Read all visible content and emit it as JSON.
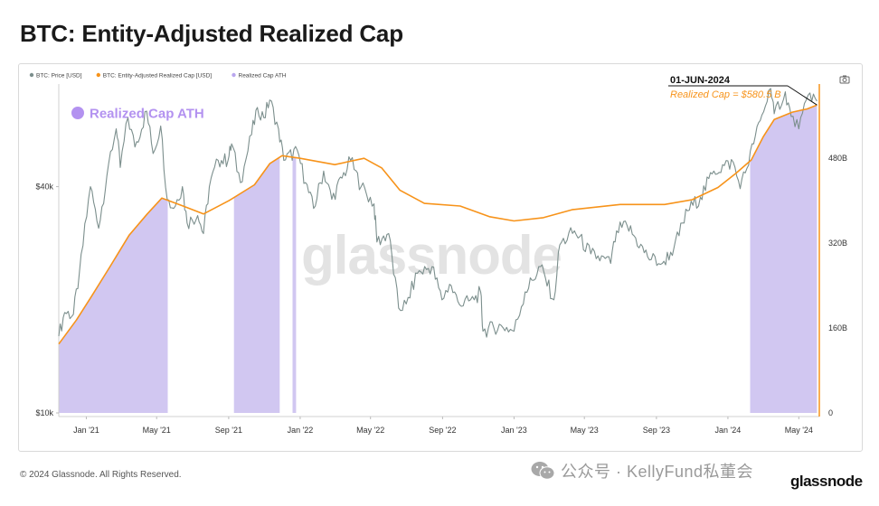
{
  "title": "BTC: Entity-Adjusted Realized Cap",
  "watermark": "glassnode",
  "copyright": "© 2024 Glassnode. All Rights Reserved.",
  "brand": "glassnode",
  "wechat_text": "公众号 · KellyFund私董会",
  "icons": {
    "camera": "camera-icon",
    "wechat": "wechat-icon"
  },
  "colors": {
    "price": "#7c8f8d",
    "realized_cap": "#f7931a",
    "ath_fill": "#cfc4f0",
    "ath_legend": "#b9a6ee",
    "ath_label": "#b392f0",
    "annotation": "#111111"
  },
  "chart_data": {
    "type": "line",
    "title": "BTC: Entity-Adjusted Realized Cap",
    "legend": {
      "placement": "top-left",
      "items": [
        {
          "name": "BTC: Price [USD]",
          "color": "#7c8f8d"
        },
        {
          "name": "BTC: Entity-Adjusted Realized Cap [USD]",
          "color": "#f7931a"
        },
        {
          "name": "Realized Cap ATH",
          "color": "#b9a6ee"
        }
      ]
    },
    "x_ticks": [
      "Jan '21",
      "May '21",
      "Sep '21",
      "Jan '22",
      "May '22",
      "Sep '22",
      "Jan '23",
      "May '23",
      "Sep '23",
      "Jan '24",
      "May '24"
    ],
    "x_range": [
      "2020-11-15",
      "2024-06-05"
    ],
    "y_left": {
      "scale": "log",
      "ticks": [
        "$10k",
        "$40k"
      ],
      "range": [
        10000,
        75000
      ]
    },
    "y_right": {
      "scale": "linear",
      "ticks": [
        "0",
        "160B",
        "320B",
        "480B"
      ],
      "range": [
        0,
        620
      ]
    },
    "ath_label": "Realized Cap ATH",
    "annotation": {
      "date": "01-JUN-2024",
      "text": "Realized Cap = $580.5 B",
      "value_billion": 580.5
    },
    "grid": false,
    "series": [
      {
        "name": "BTC: Price [USD]",
        "axis": "left",
        "points": [
          [
            "2020-11-15",
            16000
          ],
          [
            "2020-11-25",
            18500
          ],
          [
            "2020-12-10",
            18300
          ],
          [
            "2020-12-20",
            23500
          ],
          [
            "2021-01-08",
            40000
          ],
          [
            "2021-01-22",
            31000
          ],
          [
            "2021-02-08",
            46000
          ],
          [
            "2021-02-21",
            57000
          ],
          [
            "2021-02-28",
            45000
          ],
          [
            "2021-03-13",
            61000
          ],
          [
            "2021-03-25",
            51000
          ],
          [
            "2021-04-14",
            63500
          ],
          [
            "2021-04-25",
            49000
          ],
          [
            "2021-05-08",
            58000
          ],
          [
            "2021-05-19",
            37000
          ],
          [
            "2021-05-30",
            35000
          ],
          [
            "2021-06-14",
            40000
          ],
          [
            "2021-06-22",
            32000
          ],
          [
            "2021-07-10",
            33500
          ],
          [
            "2021-07-20",
            30000
          ],
          [
            "2021-07-30",
            40000
          ],
          [
            "2021-08-14",
            47000
          ],
          [
            "2021-08-31",
            47000
          ],
          [
            "2021-09-06",
            52000
          ],
          [
            "2021-09-21",
            41000
          ],
          [
            "2021-10-10",
            55000
          ],
          [
            "2021-10-20",
            65000
          ],
          [
            "2021-10-31",
            61000
          ],
          [
            "2021-11-10",
            68000
          ],
          [
            "2021-11-25",
            57000
          ],
          [
            "2021-12-04",
            47000
          ],
          [
            "2021-12-27",
            50000
          ],
          [
            "2022-01-10",
            41000
          ],
          [
            "2022-01-24",
            35000
          ],
          [
            "2022-02-10",
            44000
          ],
          [
            "2022-02-24",
            37000
          ],
          [
            "2022-03-28",
            47000
          ],
          [
            "2022-04-15",
            40000
          ],
          [
            "2022-05-07",
            36000
          ],
          [
            "2022-05-12",
            28500
          ],
          [
            "2022-06-01",
            30000
          ],
          [
            "2022-06-18",
            19000
          ],
          [
            "2022-07-01",
            19500
          ],
          [
            "2022-07-20",
            23500
          ],
          [
            "2022-08-14",
            24500
          ],
          [
            "2022-08-31",
            20000
          ],
          [
            "2022-09-13",
            22000
          ],
          [
            "2022-09-30",
            19400
          ],
          [
            "2022-10-25",
            20000
          ],
          [
            "2022-11-05",
            21000
          ],
          [
            "2022-11-09",
            16500
          ],
          [
            "2022-12-10",
            17100
          ],
          [
            "2023-01-01",
            16500
          ],
          [
            "2023-01-20",
            21000
          ],
          [
            "2023-02-15",
            24500
          ],
          [
            "2023-03-10",
            20000
          ],
          [
            "2023-03-20",
            28000
          ],
          [
            "2023-04-14",
            30500
          ],
          [
            "2023-05-12",
            26500
          ],
          [
            "2023-06-15",
            25000
          ],
          [
            "2023-06-25",
            30500
          ],
          [
            "2023-07-13",
            31500
          ],
          [
            "2023-08-17",
            26000
          ],
          [
            "2023-09-11",
            25000
          ],
          [
            "2023-10-01",
            27500
          ],
          [
            "2023-10-24",
            34500
          ],
          [
            "2023-11-15",
            37500
          ],
          [
            "2023-12-08",
            44000
          ],
          [
            "2024-01-10",
            46500
          ],
          [
            "2024-01-22",
            39500
          ],
          [
            "2024-02-14",
            52000
          ],
          [
            "2024-02-28",
            62000
          ],
          [
            "2024-03-14",
            73000
          ],
          [
            "2024-03-20",
            62500
          ],
          [
            "2024-04-08",
            71500
          ],
          [
            "2024-04-18",
            61500
          ],
          [
            "2024-05-01",
            57000
          ],
          [
            "2024-05-20",
            71000
          ],
          [
            "2024-06-01",
            67500
          ]
        ]
      },
      {
        "name": "BTC: Entity-Adjusted Realized Cap [USD]",
        "axis": "right",
        "unit": "B USD",
        "points": [
          [
            "2020-11-15",
            130
          ],
          [
            "2020-12-15",
            175
          ],
          [
            "2021-01-10",
            220
          ],
          [
            "2021-02-10",
            275
          ],
          [
            "2021-03-15",
            335
          ],
          [
            "2021-04-15",
            375
          ],
          [
            "2021-05-10",
            405
          ],
          [
            "2021-06-15",
            390
          ],
          [
            "2021-07-20",
            375
          ],
          [
            "2021-09-01",
            400
          ],
          [
            "2021-10-15",
            430
          ],
          [
            "2021-11-10",
            470
          ],
          [
            "2021-12-01",
            485
          ],
          [
            "2022-01-01",
            480
          ],
          [
            "2022-03-01",
            468
          ],
          [
            "2022-04-20",
            480
          ],
          [
            "2022-05-20",
            462
          ],
          [
            "2022-06-20",
            420
          ],
          [
            "2022-08-01",
            395
          ],
          [
            "2022-10-01",
            390
          ],
          [
            "2022-11-20",
            370
          ],
          [
            "2023-01-01",
            362
          ],
          [
            "2023-02-20",
            368
          ],
          [
            "2023-04-10",
            383
          ],
          [
            "2023-07-01",
            393
          ],
          [
            "2023-09-15",
            393
          ],
          [
            "2023-11-01",
            402
          ],
          [
            "2023-12-15",
            425
          ],
          [
            "2024-01-15",
            452
          ],
          [
            "2024-02-10",
            477
          ],
          [
            "2024-03-01",
            520
          ],
          [
            "2024-03-20",
            553
          ],
          [
            "2024-04-20",
            567
          ],
          [
            "2024-05-15",
            573
          ],
          [
            "2024-06-01",
            580.5
          ]
        ]
      }
    ],
    "ath_periods": [
      [
        "2020-11-15",
        "2021-05-20"
      ],
      [
        "2021-09-10",
        "2021-11-27"
      ],
      [
        "2021-12-19",
        "2021-12-25"
      ],
      [
        "2024-02-08",
        "2024-06-05"
      ]
    ]
  }
}
